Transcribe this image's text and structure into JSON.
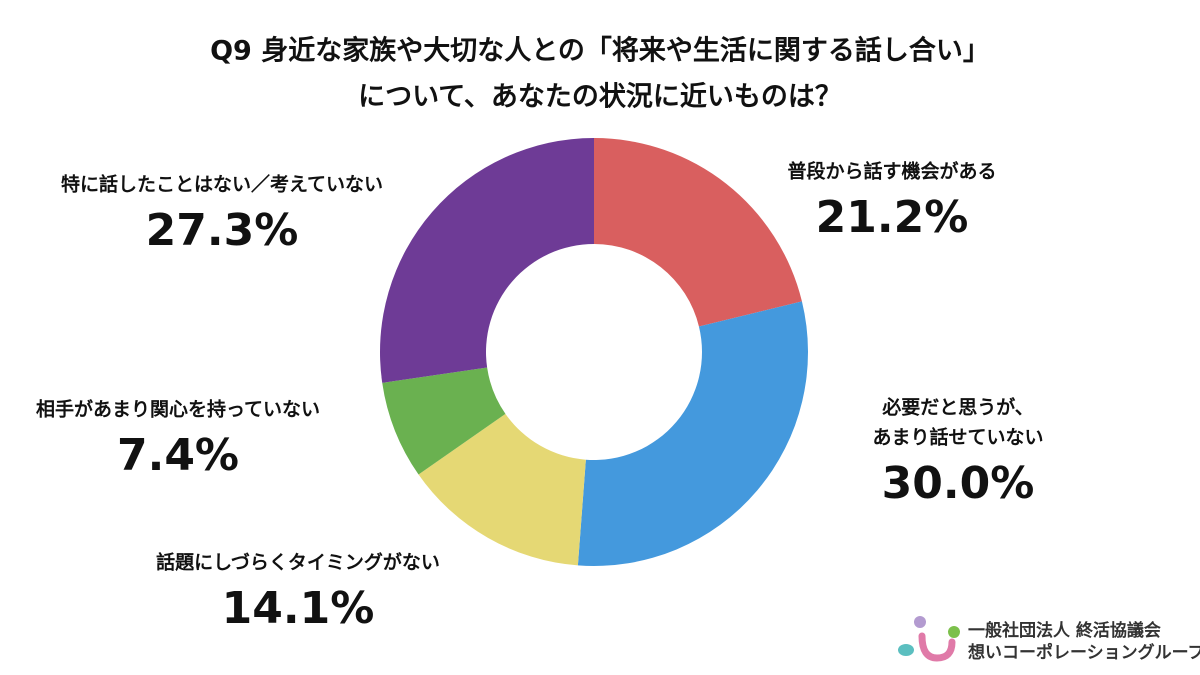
{
  "chart_data": {
    "type": "donut",
    "title": [
      "Q9 身近な家族や大切な人との「将来や生活に関する話し合い」",
      "について、あなたの状況に近いものは？"
    ],
    "categories": [
      [
        "普段から話す機会がある"
      ],
      [
        "必要だと思うが、",
        "あまり話せていない"
      ],
      [
        "話題にしづらくタイミングがない"
      ],
      [
        "相手があまり関心を持っていない"
      ],
      [
        "特に話したことはない／考えていない"
      ]
    ],
    "values": [
      21.2,
      30.0,
      14.1,
      7.4,
      27.3
    ],
    "value_labels": [
      "21.2%",
      "30.0%",
      "14.1%",
      "7.4%",
      "27.3%"
    ],
    "colors": [
      "#d95f5f",
      "#4499dd",
      "#e5d874",
      "#6ab150",
      "#6e3b96"
    ]
  },
  "logo": {
    "line1": "一般社団法人 終活協議会",
    "line2": "想いコーポレーショングループ"
  }
}
